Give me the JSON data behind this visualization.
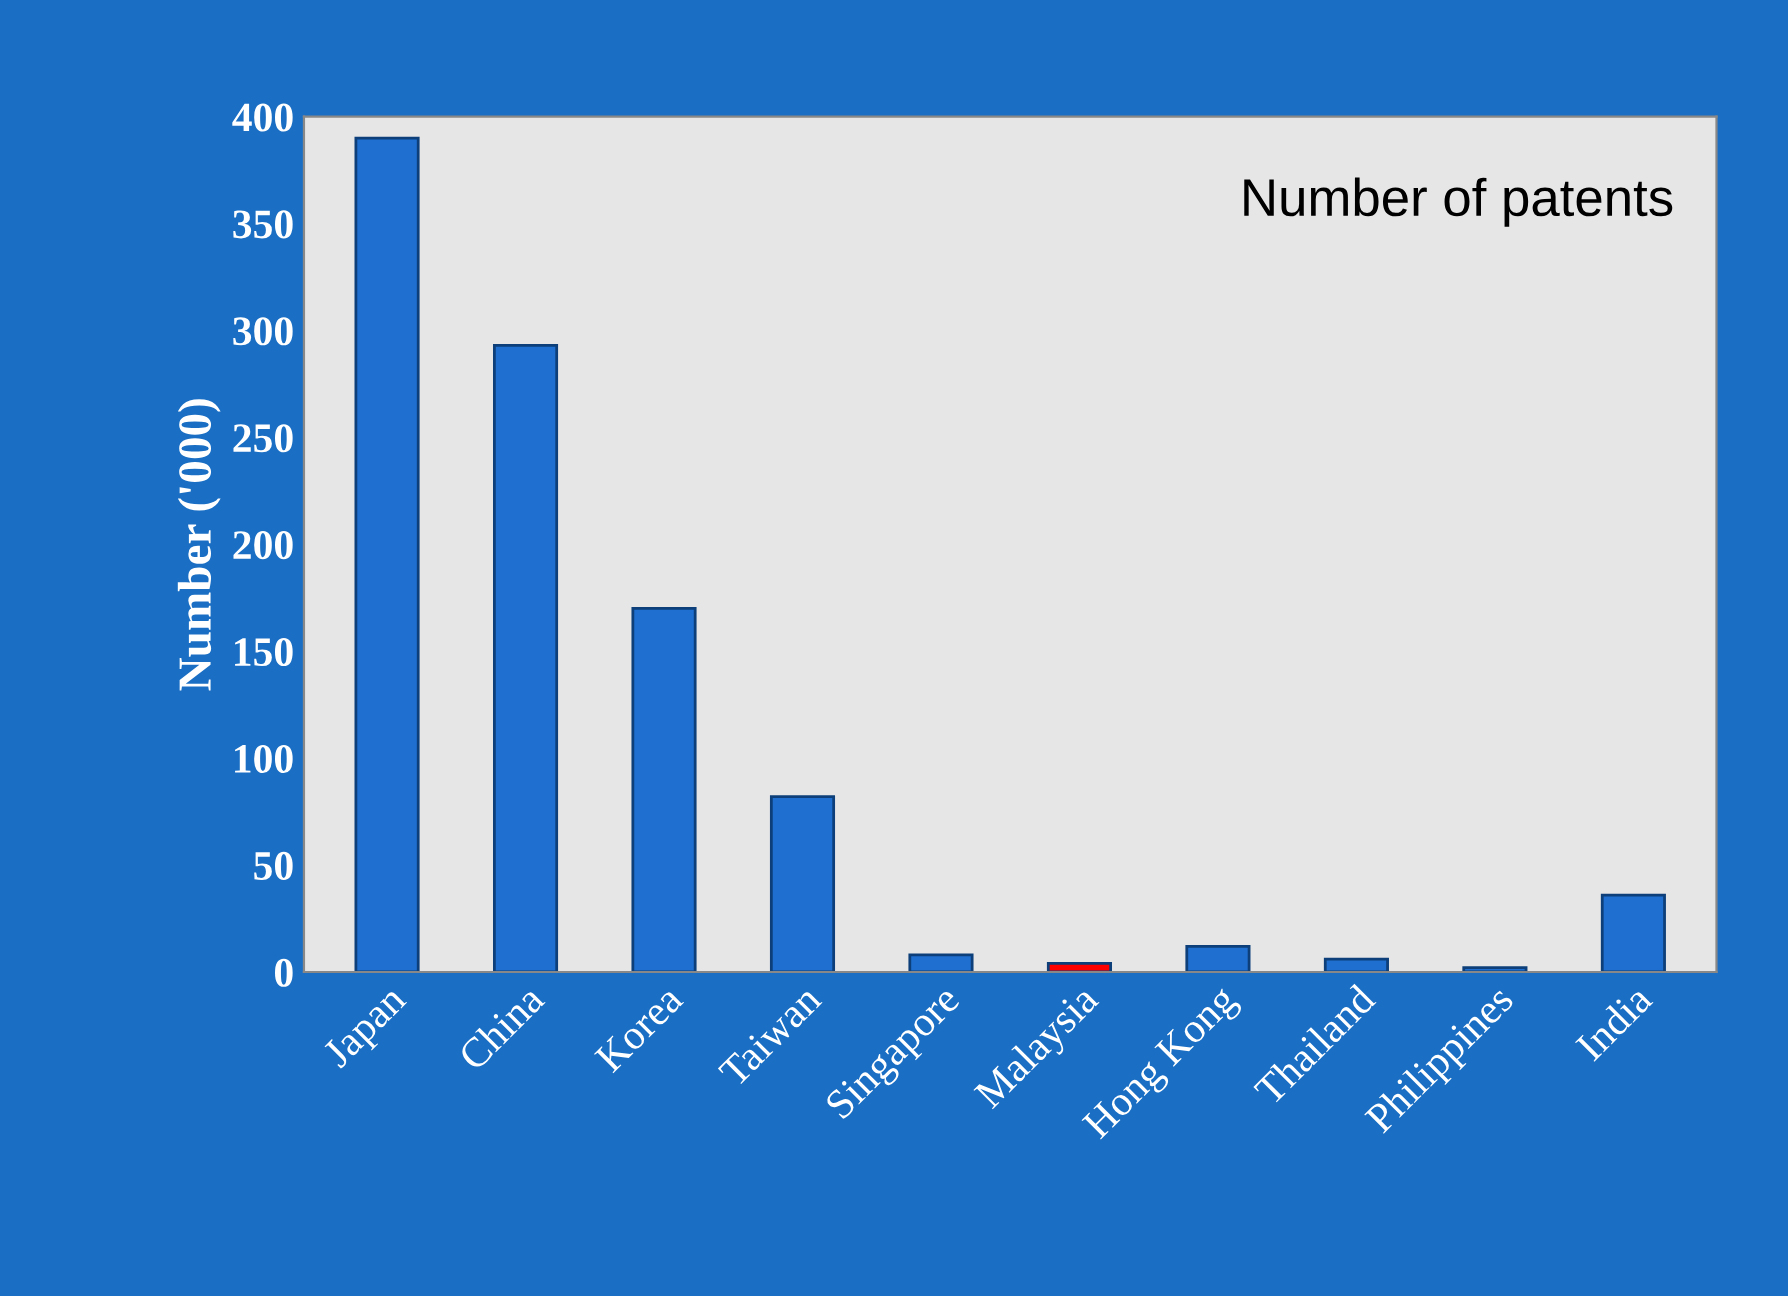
{
  "chart_data": {
    "type": "bar",
    "title": "Number of patents",
    "ylabel": "Number ('000)",
    "categories": [
      "Japan",
      "China",
      "Korea",
      "Taiwan",
      "Singapore",
      "Malaysia",
      "Hong Kong",
      "Thailand",
      "Philippines",
      "India"
    ],
    "values": [
      390,
      293,
      170,
      82,
      8,
      4,
      12,
      6,
      2,
      36
    ],
    "colors": [
      "#1f6fd0",
      "#1f6fd0",
      "#1f6fd0",
      "#1f6fd0",
      "#1f6fd0",
      "#ff0000",
      "#1f6fd0",
      "#1f6fd0",
      "#1f6fd0",
      "#1f6fd0"
    ],
    "ylim": [
      0,
      400
    ],
    "yticks": [
      0,
      50,
      100,
      150,
      200,
      250,
      300,
      350,
      400
    ],
    "grid": false,
    "legend": false
  }
}
